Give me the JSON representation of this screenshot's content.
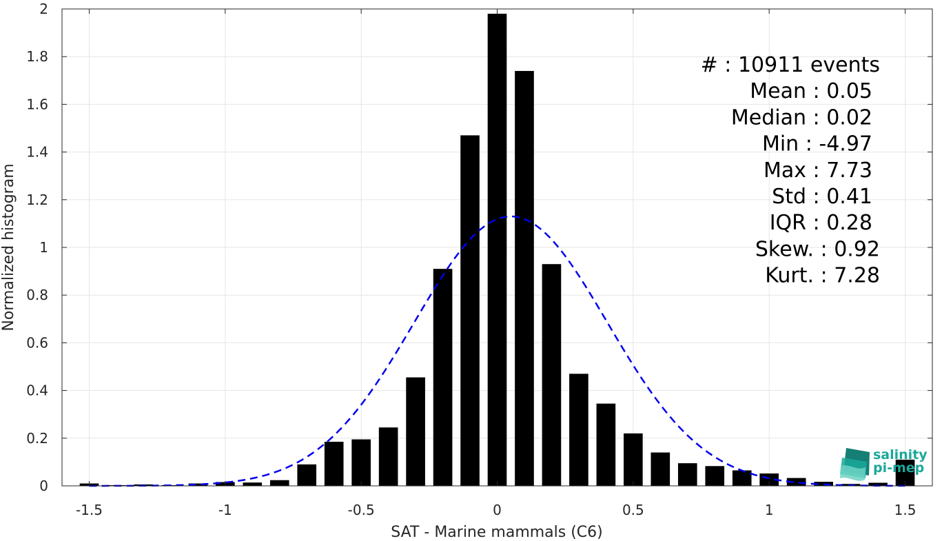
{
  "chart_data": {
    "type": "bar",
    "xlabel": "SAT - Marine mammals (C6)",
    "ylabel": "Normalized histogram",
    "xlim": [
      -1.6,
      1.6
    ],
    "ylim": [
      0,
      2
    ],
    "xticks": [
      -1.5,
      -1,
      -0.5,
      0,
      0.5,
      1,
      1.5
    ],
    "xtick_labels": [
      "-1.5",
      "-1",
      "-0.5",
      "0",
      "0.5",
      "1",
      "1.5"
    ],
    "yticks": [
      0,
      0.2,
      0.4,
      0.6,
      0.8,
      1,
      1.2,
      1.4,
      1.6,
      1.8,
      2
    ],
    "ytick_labels": [
      "0",
      "0.2",
      "0.4",
      "0.6",
      "0.8",
      "1",
      "1.2",
      "1.4",
      "1.6",
      "1.8",
      "2"
    ],
    "grid": true,
    "bar_width": 0.07,
    "bar_color": "#000000",
    "bins": {
      "x": [
        -1.5,
        -1.4,
        -1.3,
        -1.2,
        -1.1,
        -1.0,
        -0.9,
        -0.8,
        -0.7,
        -0.6,
        -0.5,
        -0.4,
        -0.3,
        -0.2,
        -0.1,
        0.0,
        0.1,
        0.2,
        0.3,
        0.4,
        0.5,
        0.6,
        0.7,
        0.8,
        0.9,
        1.0,
        1.1,
        1.2,
        1.3,
        1.4,
        1.5
      ],
      "values": [
        0.01,
        0.003,
        0.006,
        0.003,
        0.01,
        0.016,
        0.014,
        0.024,
        0.09,
        0.185,
        0.195,
        0.245,
        0.455,
        0.91,
        1.47,
        1.98,
        1.74,
        0.93,
        0.47,
        0.345,
        0.22,
        0.14,
        0.095,
        0.083,
        0.065,
        0.052,
        0.033,
        0.017,
        0.008,
        0.013,
        0.11
      ]
    },
    "fit_curve": {
      "style": "dashed",
      "color": "#0000ee",
      "mean": 0.05,
      "std": 0.355,
      "peak": 1.13
    },
    "stats": [
      "#  : 10911 events",
      "Mean : 0.05",
      "Median : 0.02",
      "Min : -4.97",
      "Max : 7.73",
      "Std : 0.41",
      "IQR : 0.28",
      "Skew. : 0.92",
      "Kurt. : 7.28"
    ]
  },
  "logo": {
    "line1": "salinity",
    "line2": "pi-mep",
    "color": "#1aa89a"
  }
}
